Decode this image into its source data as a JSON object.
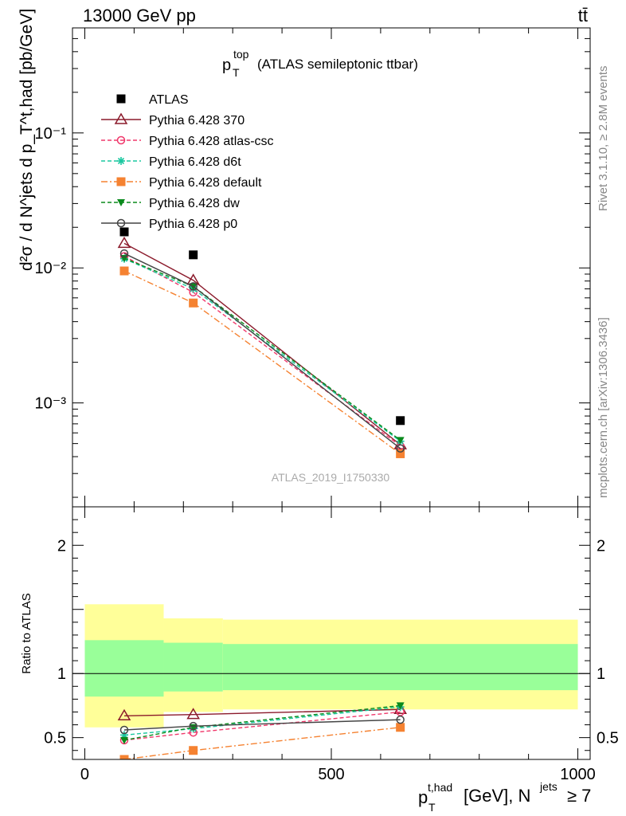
{
  "header": {
    "left": "13000 GeV pp",
    "right": "tt̄"
  },
  "side_labels": {
    "rivet": "Rivet 3.1.10, ≥ 2.8M events",
    "mcplots": "mcplots.cern.ch [arXiv:1306.3436]"
  },
  "colors": {
    "atlas": "#000000",
    "p370": "#8b1a2b",
    "atlas_csc": "#f0386b",
    "d6t": "#1bc8a0",
    "default": "#f58231",
    "dw": "#0a8a1c",
    "p0": "#444444",
    "band_inner": "#99ff99",
    "band_outer": "#ffff99"
  },
  "chart_data": [
    {
      "type": "line",
      "panel": "main",
      "title_main": "p",
      "title_sup": "top",
      "title_sub": "T",
      "title_rest": "(ATLAS semileptonic ttbar)",
      "watermark": "ATLAS_2019_I1750330",
      "ylabel": "d²σ / d N^jets d p_T^t,had [pb/GeV]",
      "yscale": "log",
      "xlim": [
        -25,
        1025
      ],
      "ylim": [
        0.00017,
        0.6
      ],
      "ytick_labels": [
        "10⁻¹",
        "10⁻²",
        "10⁻³"
      ],
      "ytick_values": [
        0.1,
        0.01,
        0.001
      ],
      "x": [
        80,
        220,
        640
      ],
      "series": [
        {
          "name": "ATLAS",
          "key": "atlas",
          "marker": "square-filled",
          "line": "none",
          "values": [
            0.0185,
            0.0125,
            0.00074
          ]
        },
        {
          "name": "Pythia 6.428 370",
          "key": "p370",
          "marker": "triangle-open",
          "line": "solid",
          "values": [
            0.0152,
            0.0081,
            0.00049
          ]
        },
        {
          "name": "Pythia 6.428 atlas-csc",
          "key": "atlas_csc",
          "marker": "circle-open",
          "line": "dashed",
          "values": [
            0.0122,
            0.0066,
            0.00048
          ]
        },
        {
          "name": "Pythia 6.428 d6t",
          "key": "d6t",
          "marker": "star",
          "line": "dashed",
          "values": [
            0.0117,
            0.007,
            0.00052
          ]
        },
        {
          "name": "Pythia 6.428 default",
          "key": "default",
          "marker": "square-filled",
          "line": "dashdot",
          "values": [
            0.0095,
            0.0055,
            0.00042
          ]
        },
        {
          "name": "Pythia 6.428 dw",
          "key": "dw",
          "marker": "triangle-down-filled",
          "line": "dashed",
          "values": [
            0.0118,
            0.0073,
            0.00053
          ]
        },
        {
          "name": "Pythia 6.428 p0",
          "key": "p0",
          "marker": "circle-open",
          "line": "solid",
          "values": [
            0.0128,
            0.0073,
            0.00046
          ]
        }
      ]
    },
    {
      "type": "line",
      "panel": "ratio",
      "ylabel": "Ratio to ATLAS",
      "xlabel_main": "p",
      "xlabel_sup": "t,had",
      "xlabel_sub": "T",
      "xlabel_rest": "[GeV], N",
      "xlabel_sup2": "jets",
      "xlabel_tail": "≥ 7",
      "xlim": [
        -25,
        1025
      ],
      "ylim": [
        0.33,
        2.3
      ],
      "yticks": [
        0.5,
        1,
        2
      ],
      "ytick_labels": [
        "0.5",
        "1",
        "2"
      ],
      "xticks": [
        0,
        500,
        1000
      ],
      "xtick_labels": [
        "0",
        "500",
        "1000"
      ],
      "bands": [
        {
          "xmin": 0,
          "xmax": 160,
          "inner": [
            0.82,
            1.26
          ],
          "outer": [
            0.58,
            1.54
          ]
        },
        {
          "xmin": 160,
          "xmax": 280,
          "inner": [
            0.86,
            1.24
          ],
          "outer": [
            0.7,
            1.43
          ]
        },
        {
          "xmin": 280,
          "xmax": 1000,
          "inner": [
            0.87,
            1.23
          ],
          "outer": [
            0.72,
            1.42
          ]
        }
      ],
      "x": [
        80,
        220,
        640
      ],
      "series": [
        {
          "name": "Pythia 6.428 370",
          "key": "p370",
          "marker": "triangle-open",
          "line": "solid",
          "values": [
            0.67,
            0.68,
            0.72
          ]
        },
        {
          "name": "Pythia 6.428 atlas-csc",
          "key": "atlas_csc",
          "marker": "circle-open",
          "line": "dashed",
          "values": [
            0.48,
            0.54,
            0.7
          ]
        },
        {
          "name": "Pythia 6.428 d6t",
          "key": "d6t",
          "marker": "star",
          "line": "dashed",
          "values": [
            0.52,
            0.57,
            0.74
          ]
        },
        {
          "name": "Pythia 6.428 default",
          "key": "default",
          "marker": "square-filled",
          "line": "dashdot",
          "values": [
            0.33,
            0.4,
            0.58
          ]
        },
        {
          "name": "Pythia 6.428 dw",
          "key": "dw",
          "marker": "triangle-down-filled",
          "line": "dashed",
          "values": [
            0.48,
            0.58,
            0.75
          ]
        },
        {
          "name": "Pythia 6.428 p0",
          "key": "p0",
          "marker": "circle-open",
          "line": "solid",
          "values": [
            0.56,
            0.59,
            0.64
          ]
        }
      ]
    }
  ]
}
